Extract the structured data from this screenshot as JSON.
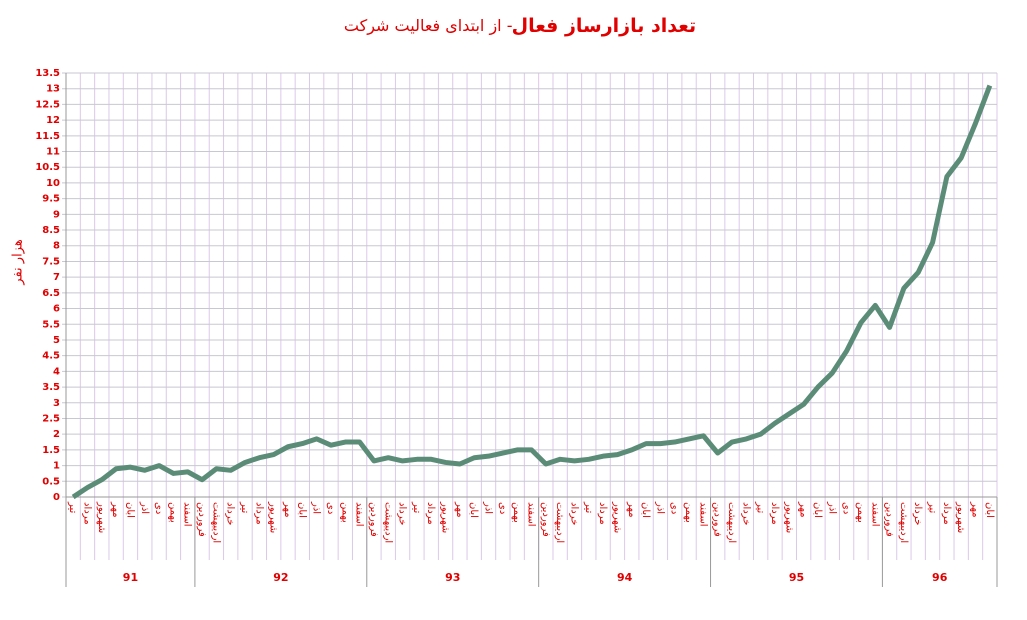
{
  "chart_data": {
    "type": "line",
    "title": "تعداد بازارساز فعال",
    "subtitle": "- از ابتدای فعالیت شرکت",
    "y_label": "هزار نفر",
    "categories": [
      "تیر",
      "مرداد",
      "شهریور",
      "مهر",
      "ابان",
      "اذر",
      "دی",
      "بهمن",
      "اسفند",
      "فروردین",
      "اردیبهشت",
      "خرداد",
      "تیر",
      "مرداد",
      "شهریور",
      "مهر",
      "ابان",
      "اذر",
      "دی",
      "بهمن",
      "اسفند",
      "فروردین",
      "اردیبهشت",
      "خرداد",
      "تیر",
      "مرداد",
      "شهریور",
      "مهر",
      "ابان",
      "اذر",
      "دی",
      "بهمن",
      "اسفند",
      "فروردین",
      "اردیبهشت",
      "خرداد",
      "تیر",
      "مرداد",
      "شهریور",
      "مهر",
      "ابان",
      "اذر",
      "دی",
      "بهمن",
      "اسفند",
      "فروردین",
      "اردیبهشت",
      "خرداد",
      "تیر",
      "مرداد",
      "شهریور",
      "مهر",
      "ابان",
      "اذر",
      "دی",
      "بهمن",
      "اسفند",
      "فروردین",
      "اردیبهشت",
      "خرداد",
      "تیر",
      "مرداد",
      "شهریور",
      "مهر",
      "ابان"
    ],
    "year_groups": [
      {
        "label": "91",
        "months": 9
      },
      {
        "label": "92",
        "months": 12
      },
      {
        "label": "93",
        "months": 12
      },
      {
        "label": "94",
        "months": 12
      },
      {
        "label": "95",
        "months": 12
      },
      {
        "label": "96",
        "months": 8
      }
    ],
    "series": [
      {
        "name": "بازارساز فعال",
        "color": "#5b8c78",
        "values": [
          0,
          0.3,
          0.55,
          0.9,
          0.95,
          0.85,
          1.0,
          0.75,
          0.8,
          0.55,
          0.9,
          0.85,
          1.1,
          1.25,
          1.35,
          1.6,
          1.7,
          1.85,
          1.65,
          1.75,
          1.75,
          1.15,
          1.25,
          1.15,
          1.2,
          1.2,
          1.1,
          1.05,
          1.25,
          1.3,
          1.4,
          1.5,
          1.5,
          1.05,
          1.2,
          1.15,
          1.2,
          1.3,
          1.35,
          1.5,
          1.7,
          1.7,
          1.75,
          1.85,
          1.95,
          1.4,
          1.75,
          1.85,
          2.0,
          2.35,
          2.65,
          2.95,
          3.5,
          3.95,
          4.65,
          5.55,
          6.1,
          5.4,
          6.65,
          7.15,
          8.1,
          10.2,
          10.8,
          11.9,
          13.1
        ]
      }
    ],
    "ylim": [
      0,
      13.5
    ],
    "yticks": [
      0,
      0.5,
      1,
      1.5,
      2,
      2.5,
      3,
      3.5,
      4,
      4.5,
      5,
      5.5,
      6,
      6.5,
      7,
      7.5,
      8,
      8.5,
      9,
      9.5,
      10,
      10.5,
      11,
      11.5,
      12,
      12.5,
      13,
      13.5
    ],
    "grid": true
  }
}
